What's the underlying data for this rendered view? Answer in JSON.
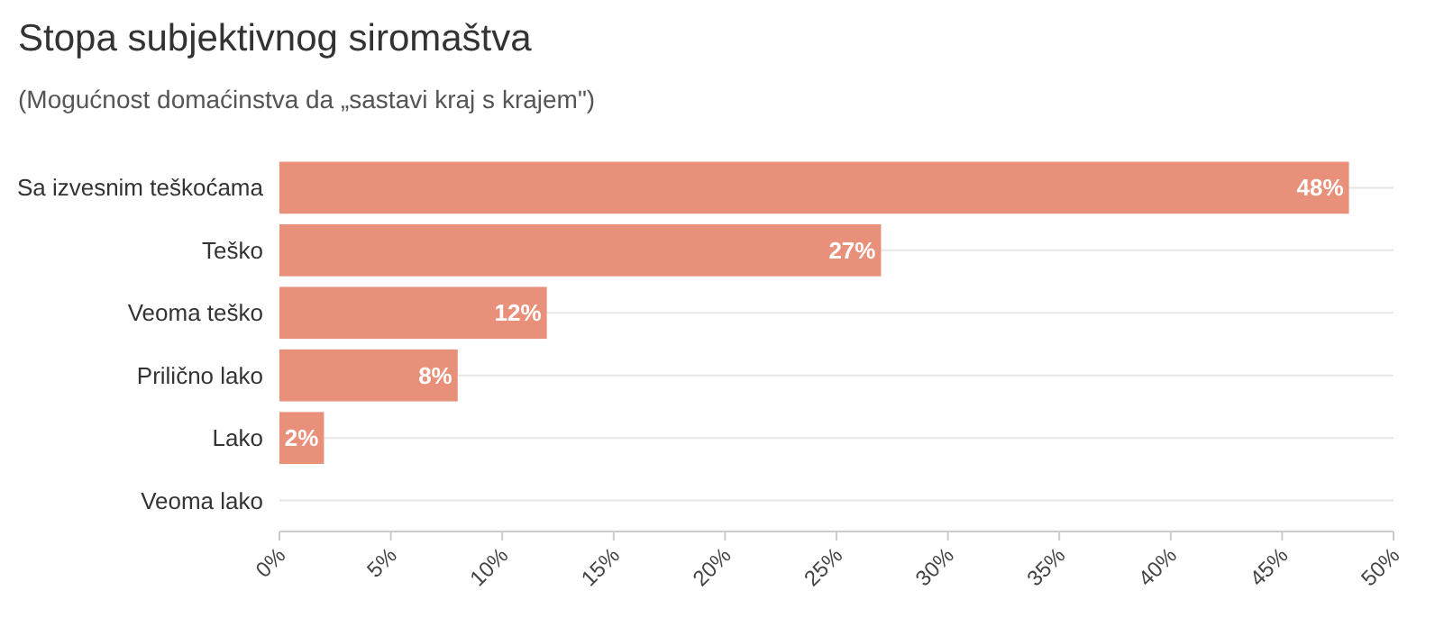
{
  "chart_data": {
    "type": "bar",
    "orientation": "horizontal",
    "title": "Stopa subjektivnog siromaštva",
    "subtitle": "(Mogućnost domaćinstva da „sastavi kraj s krajem\")",
    "categories": [
      "Sa izvesnim teškoćama",
      "Teško",
      "Veoma teško",
      "Prilično lako",
      "Lako",
      "Veoma lako"
    ],
    "values": [
      48,
      27,
      12,
      8,
      2,
      0
    ],
    "value_labels": [
      "48%",
      "27%",
      "12%",
      "8%",
      "2%",
      null
    ],
    "color": "#e8907a",
    "xlim": [
      0,
      50
    ],
    "xticks": [
      {
        "value": 0,
        "label": "0%"
      },
      {
        "value": 5,
        "label": "5%"
      },
      {
        "value": 10,
        "label": "10%"
      },
      {
        "value": 15,
        "label": "15%"
      },
      {
        "value": 20,
        "label": "20%"
      },
      {
        "value": 25,
        "label": "25%"
      },
      {
        "value": 30,
        "label": "30%"
      },
      {
        "value": 35,
        "label": "35%"
      },
      {
        "value": 40,
        "label": "40%"
      },
      {
        "value": 45,
        "label": "45%"
      },
      {
        "value": 50,
        "label": "50%"
      }
    ],
    "grid": "y"
  }
}
